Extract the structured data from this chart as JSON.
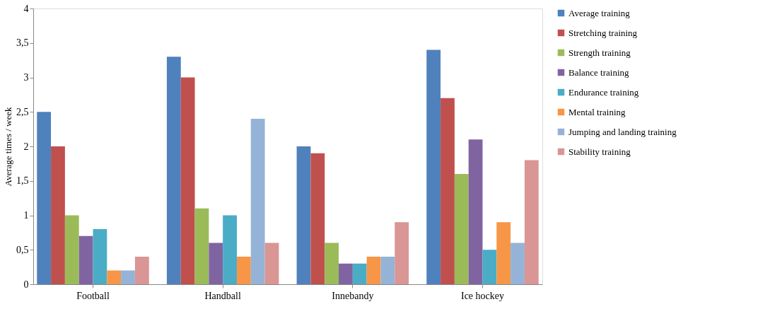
{
  "chart_data": {
    "type": "bar",
    "ylabel": "Average times / week",
    "categories": [
      "Football",
      "Handball",
      "Innebandy",
      "Ice hockey"
    ],
    "ylim": [
      0,
      4
    ],
    "yticks": [
      0,
      {
        "value": 0.5,
        "label": "0,5"
      },
      1,
      {
        "value": 1.5,
        "label": "1,5"
      },
      2,
      {
        "value": 2.5,
        "label": "2,5"
      },
      3,
      {
        "value": 3.5,
        "label": "3,5"
      },
      4
    ],
    "grid": false,
    "legend": "right",
    "series": [
      {
        "name": "Average training",
        "color": "#4f81bd",
        "values": [
          2.5,
          3.3,
          2.0,
          3.4
        ]
      },
      {
        "name": "Stretching training",
        "color": "#c0504d",
        "values": [
          2.0,
          3.0,
          1.9,
          2.7
        ]
      },
      {
        "name": "Strength training",
        "color": "#9bbb59",
        "values": [
          1.0,
          1.1,
          0.6,
          1.6
        ]
      },
      {
        "name": "Balance training",
        "color": "#8064a2",
        "values": [
          0.7,
          0.6,
          0.3,
          2.1
        ]
      },
      {
        "name": "Endurance training",
        "color": "#4bacc6",
        "values": [
          0.8,
          1.0,
          0.3,
          0.5
        ]
      },
      {
        "name": "Mental training",
        "color": "#f79646",
        "values": [
          0.2,
          0.4,
          0.4,
          0.9
        ]
      },
      {
        "name": "Jumping and landing training",
        "color": "#95b3d7",
        "values": [
          0.2,
          2.4,
          0.4,
          0.6
        ]
      },
      {
        "name": "Stability training",
        "color": "#d99694",
        "values": [
          0.4,
          0.6,
          0.9,
          1.8
        ]
      }
    ]
  }
}
